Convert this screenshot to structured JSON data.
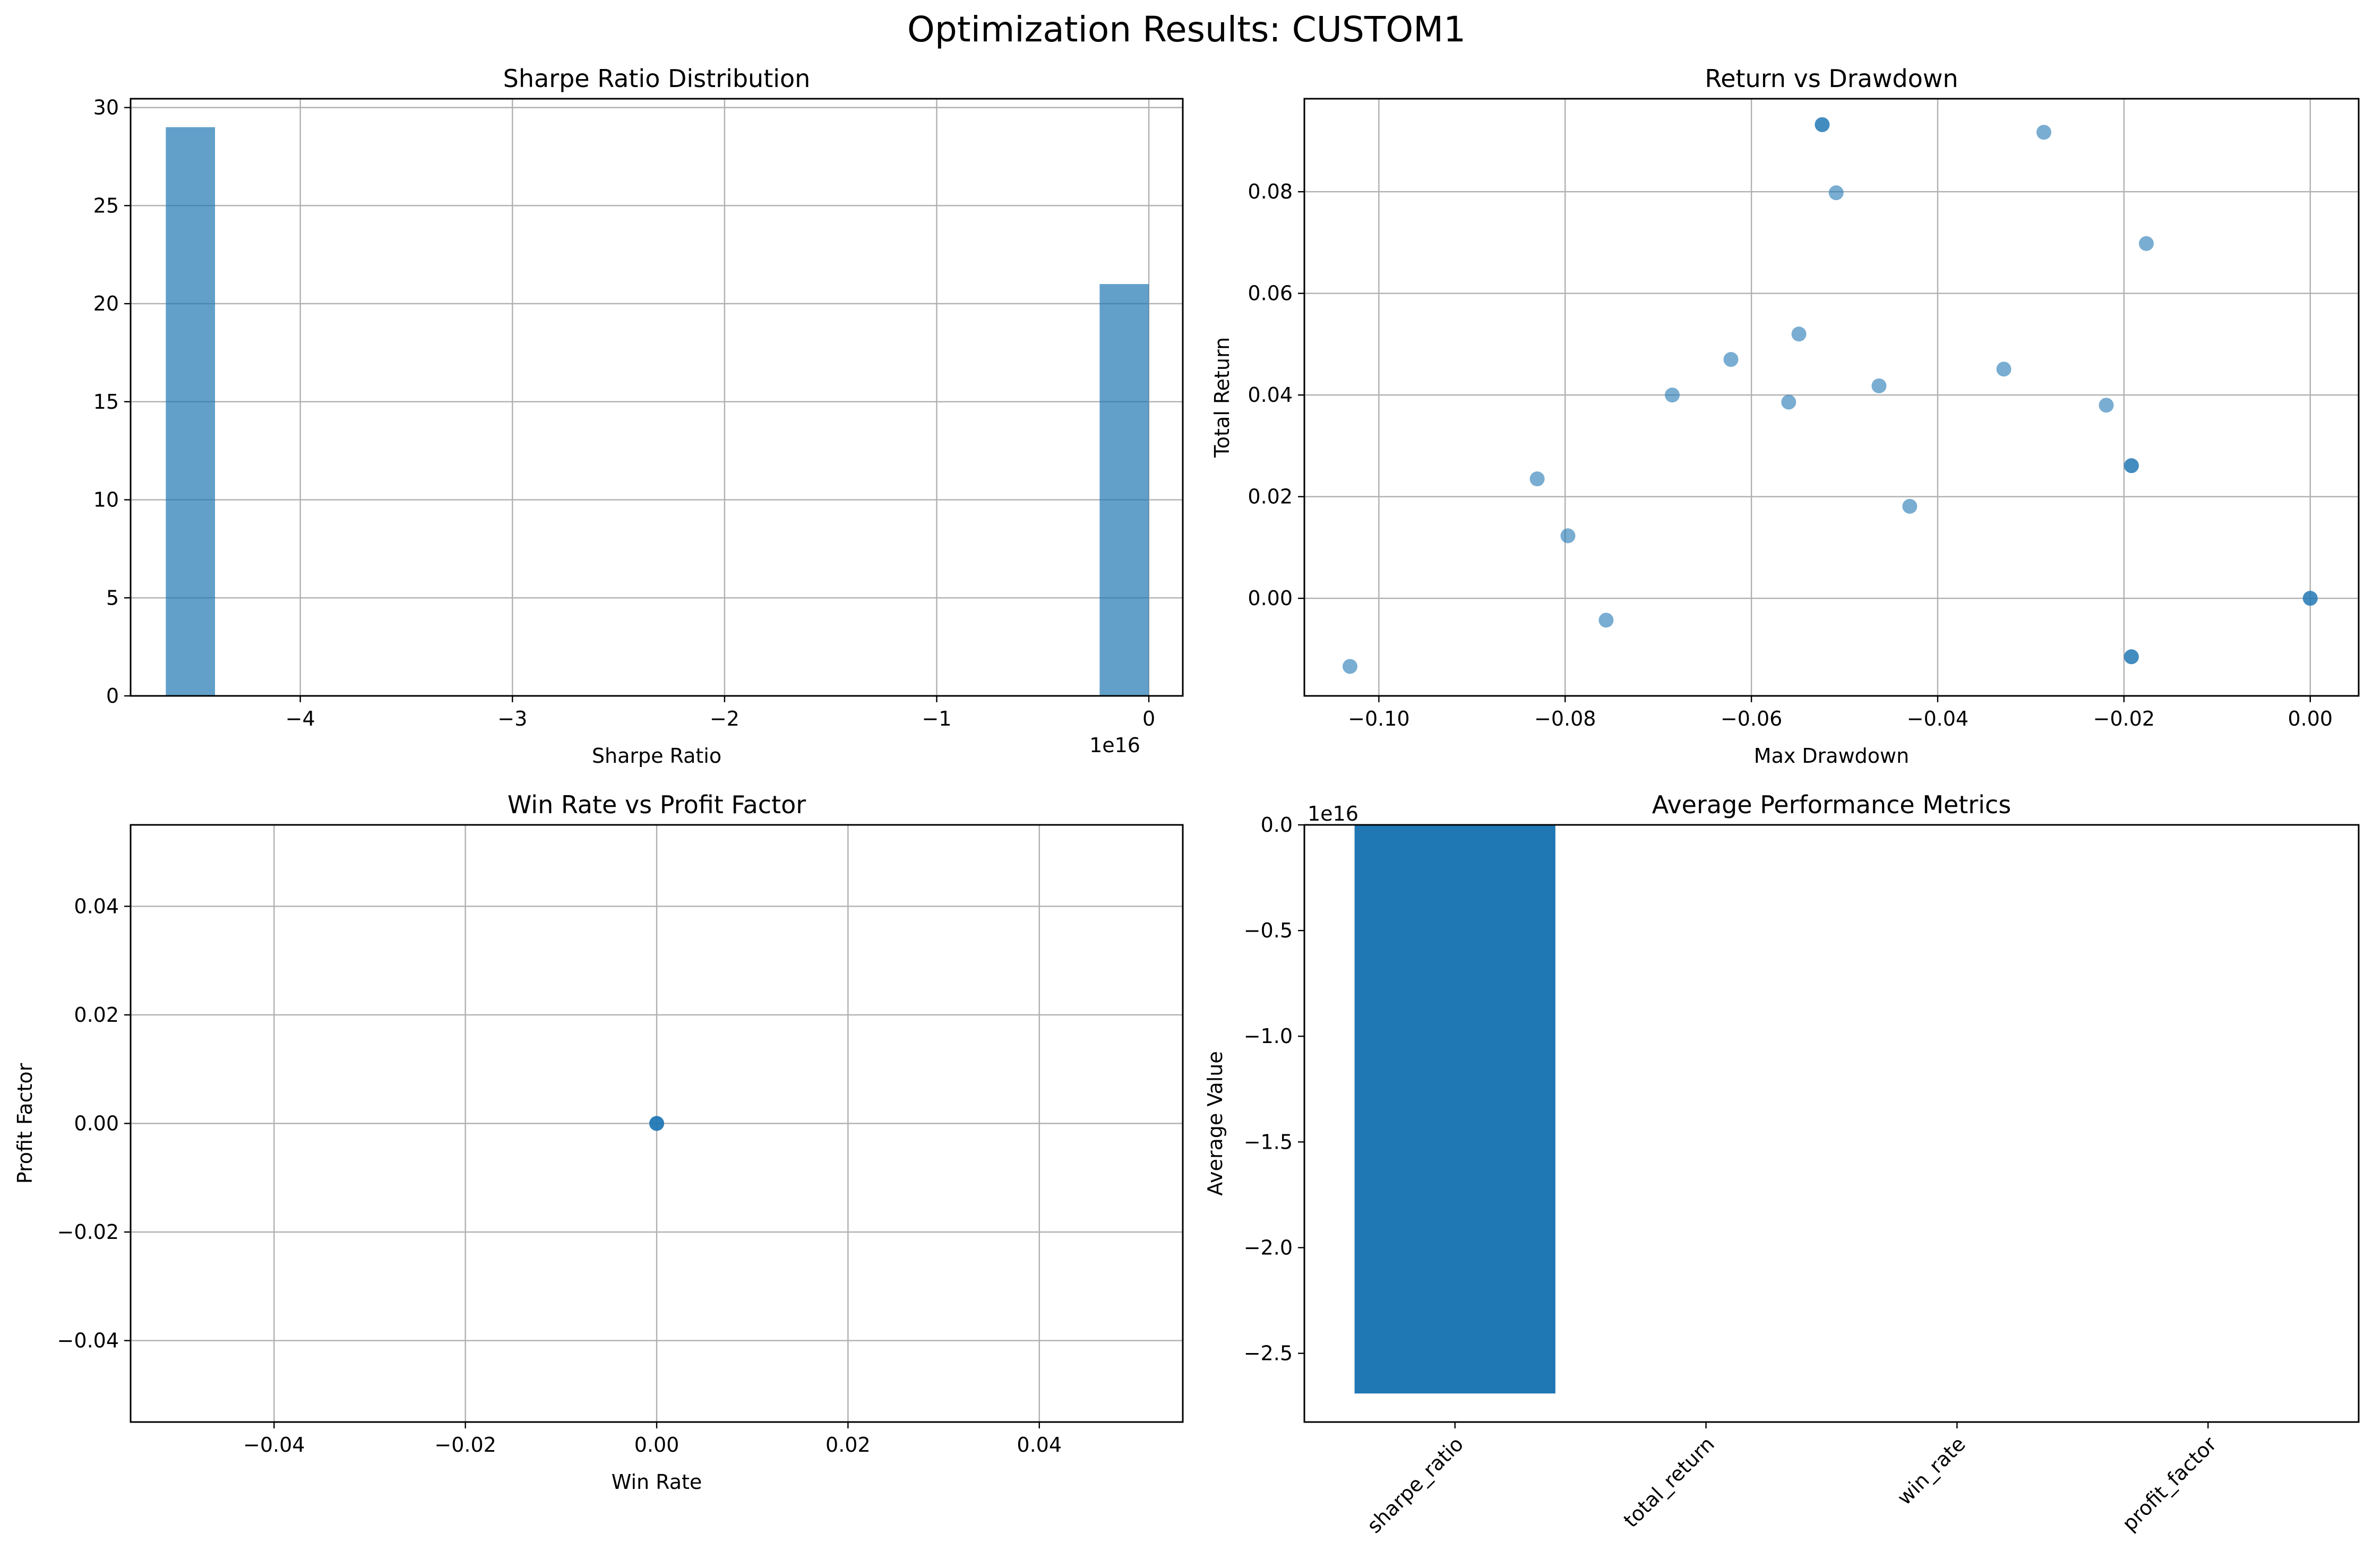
{
  "figure": {
    "title": "Optimization Results: CUSTOM1"
  },
  "chart_data": [
    {
      "type": "bar",
      "subtype": "histogram",
      "title": "Sharpe Ratio Distribution",
      "xlabel": "Sharpe Ratio",
      "ylabel": "",
      "x_offset_text": "1e16",
      "xlim": [
        -4.8,
        0.16
      ],
      "ylim": [
        0,
        30.45
      ],
      "xticks": [
        -4,
        -3,
        -2,
        -1,
        0
      ],
      "xtick_labels": [
        "−4",
        "−3",
        "−2",
        "−1",
        "0"
      ],
      "yticks": [
        0,
        5,
        10,
        15,
        20,
        25,
        30
      ],
      "ytick_labels": [
        "0",
        "5",
        "10",
        "15",
        "20",
        "25",
        "30"
      ],
      "bins": [
        {
          "x0": -4.634,
          "x1": -4.402,
          "count": 29
        },
        {
          "x0": -0.232,
          "x1": 0.0,
          "count": 21
        }
      ],
      "color": "#1f77b4",
      "grid": true
    },
    {
      "type": "scatter",
      "title": "Return vs Drawdown",
      "xlabel": "Max Drawdown",
      "ylabel": "Total Return",
      "xlim": [
        -0.108,
        0.0052
      ],
      "ylim": [
        -0.0192,
        0.0983
      ],
      "xticks": [
        -0.1,
        -0.08,
        -0.06,
        -0.04,
        -0.02,
        0.0
      ],
      "xtick_labels": [
        "−0.10",
        "−0.08",
        "−0.06",
        "−0.04",
        "−0.02",
        "0.00"
      ],
      "yticks": [
        0.0,
        0.02,
        0.04,
        0.06,
        0.08
      ],
      "ytick_labels": [
        "0.00",
        "0.02",
        "0.04",
        "0.06",
        "0.08"
      ],
      "x": [
        -0.1031,
        -0.083,
        -0.0797,
        -0.0756,
        -0.0685,
        -0.0622,
        -0.056,
        -0.0549,
        -0.0524,
        -0.0524,
        -0.0509,
        -0.0463,
        -0.043,
        -0.0329,
        -0.0286,
        -0.0219,
        -0.0192,
        -0.0192,
        -0.0192,
        -0.0192,
        -0.0176,
        0.0,
        0.0
      ],
      "y": [
        -0.0134,
        0.0235,
        0.0123,
        -0.0043,
        0.04,
        0.047,
        0.0386,
        0.052,
        0.0932,
        0.0932,
        0.0798,
        0.0418,
        0.0181,
        0.0451,
        0.0917,
        0.038,
        0.0261,
        0.0261,
        -0.0115,
        -0.0115,
        0.0698,
        0.0,
        0.0
      ],
      "color": "#1f77b4",
      "grid": true
    },
    {
      "type": "scatter",
      "title": "Win Rate vs Profit Factor",
      "xlabel": "Win Rate",
      "ylabel": "Profit Factor",
      "xlim": [
        -0.055,
        0.055
      ],
      "ylim": [
        -0.055,
        0.055
      ],
      "xticks": [
        -0.04,
        -0.02,
        0.0,
        0.02,
        0.04
      ],
      "xtick_labels": [
        "−0.04",
        "−0.02",
        "0.00",
        "0.02",
        "0.04"
      ],
      "yticks": [
        -0.04,
        -0.02,
        0.0,
        0.02,
        0.04
      ],
      "ytick_labels": [
        "−0.04",
        "−0.02",
        "0.00",
        "0.02",
        "0.04"
      ],
      "x": [
        0,
        0,
        0
      ],
      "y": [
        0,
        0,
        0
      ],
      "color": "#1f77b4",
      "grid": true
    },
    {
      "type": "bar",
      "title": "Average Performance Metrics",
      "xlabel": "",
      "ylabel": "Average Value",
      "y_offset_text": "1e16",
      "categories": [
        "sharpe_ratio",
        "total_return",
        "win_rate",
        "profit_factor"
      ],
      "values": [
        -2.69,
        0,
        0,
        0
      ],
      "ylim": [
        -2.825,
        0
      ],
      "yticks": [
        0,
        -0.5,
        -1.0,
        -1.5,
        -2.0,
        -2.5
      ],
      "ytick_labels": [
        "0.0",
        "−0.5",
        "−1.0",
        "−1.5",
        "−2.0",
        "−2.5"
      ],
      "color": "#1f77b4",
      "grid": false
    }
  ]
}
